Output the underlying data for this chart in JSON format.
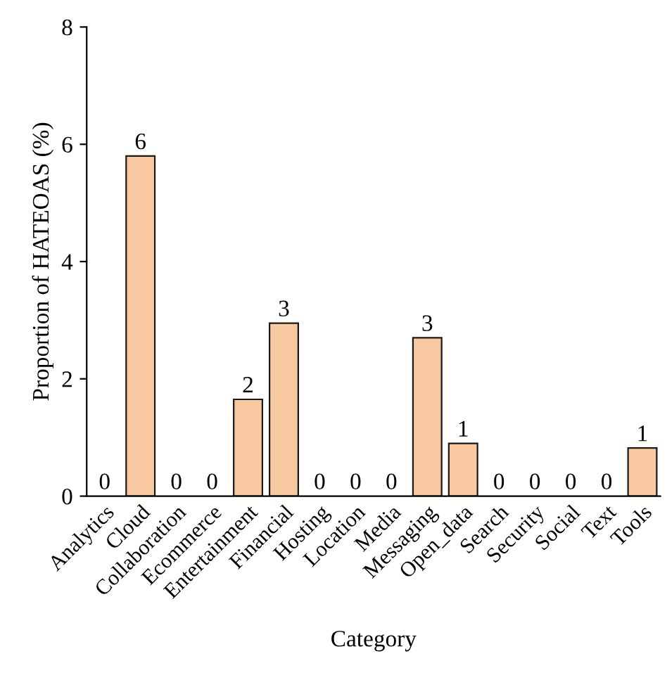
{
  "chart_data": {
    "type": "bar",
    "categories": [
      "Analytics",
      "Cloud",
      "Collaboration",
      "Ecommerce",
      "Entertainment",
      "Financial",
      "Hosting",
      "Location",
      "Media",
      "Messaging",
      "Open_data",
      "Search",
      "Security",
      "Social",
      "Text",
      "Tools"
    ],
    "values": [
      0,
      5.8,
      0,
      0,
      1.65,
      2.95,
      0,
      0,
      0,
      2.7,
      0.9,
      0,
      0,
      0,
      0,
      0.82
    ],
    "value_labels": [
      "0",
      "6",
      "0",
      "0",
      "2",
      "3",
      "0",
      "0",
      "0",
      "3",
      "1",
      "0",
      "0",
      "0",
      "0",
      "1"
    ],
    "color": "#f8c9a0",
    "xlabel": "Category",
    "ylabel": "Proportion of HATEOAS (%)",
    "ylim": [
      0,
      8
    ],
    "yticks": [
      0,
      2,
      4,
      6,
      8
    ],
    "grid": false,
    "legend": false
  }
}
